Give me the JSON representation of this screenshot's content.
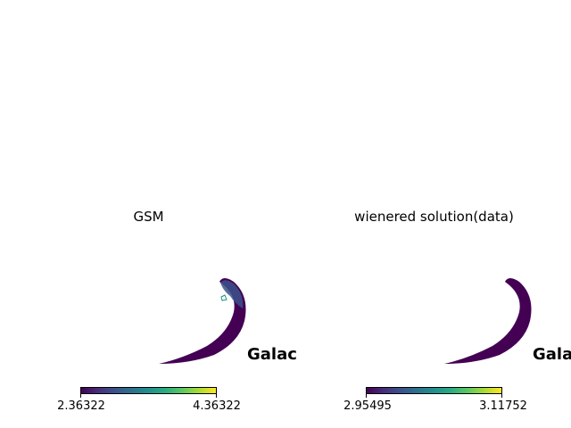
{
  "chart_data": [
    {
      "type": "heatmap",
      "title": "GSM",
      "colorbar": {
        "colormap": "viridis",
        "min_label": "2.36322",
        "max_label": "4.36322",
        "min": 2.36322,
        "max": 4.36322
      },
      "annotation": "Galac",
      "grid": false
    },
    {
      "type": "heatmap",
      "title": "wienered solution(data)",
      "colorbar": {
        "colormap": "viridis",
        "min_label": "2.95495",
        "max_label": "3.11752",
        "min": 2.95495,
        "max": 3.11752
      },
      "annotation": "Gala",
      "grid": false
    }
  ],
  "colors": {
    "viridis_low": "#440154",
    "viridis_mid": "#21908d",
    "viridis_high": "#fde725",
    "background": "#ffffff"
  }
}
